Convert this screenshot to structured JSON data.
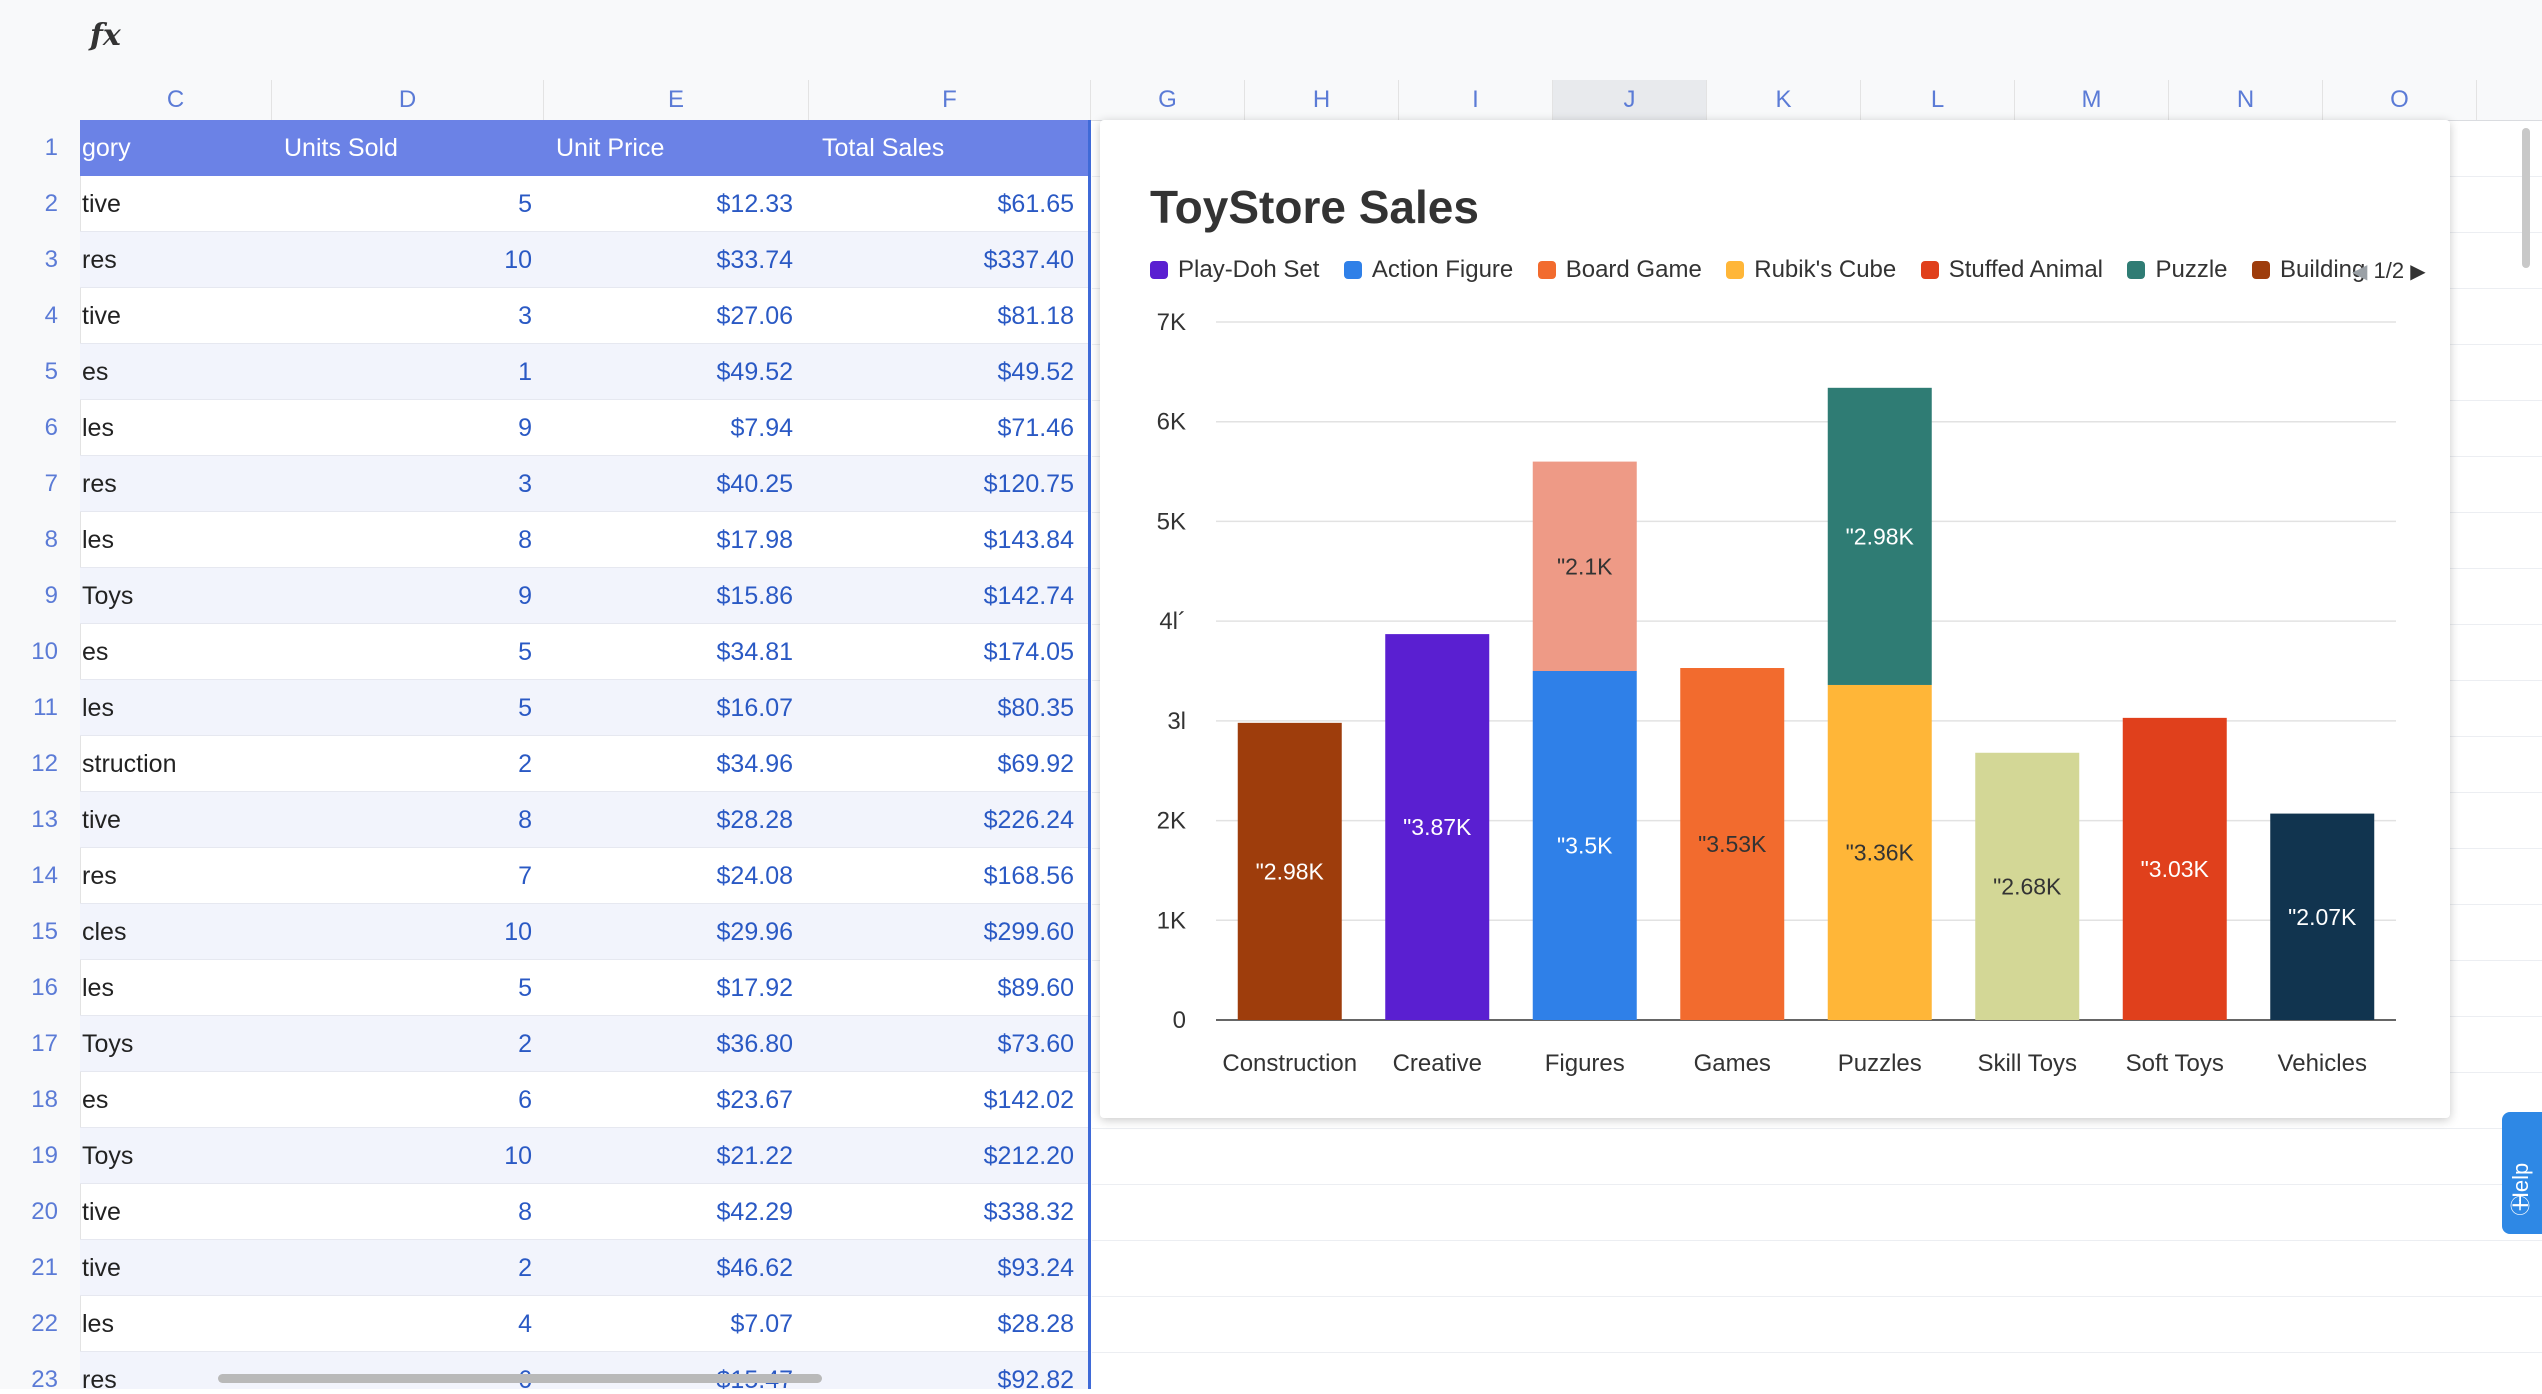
{
  "formula_bar": {
    "fx_label": "fx"
  },
  "columns": [
    {
      "letter": "C"
    },
    {
      "letter": "D"
    },
    {
      "letter": "E"
    },
    {
      "letter": "F"
    },
    {
      "letter": "G"
    },
    {
      "letter": "H"
    },
    {
      "letter": "I"
    },
    {
      "letter": "J"
    },
    {
      "letter": "K"
    },
    {
      "letter": "L"
    },
    {
      "letter": "M"
    },
    {
      "letter": "N"
    },
    {
      "letter": "O"
    }
  ],
  "selected_column": "J",
  "table": {
    "headers": [
      "gory",
      "Units Sold",
      "Unit Price",
      "Total Sales"
    ],
    "rows": [
      {
        "num": "1"
      },
      {
        "num": "2",
        "cat": "tive",
        "units": "5",
        "price": "$12.33",
        "total": "$61.65"
      },
      {
        "num": "3",
        "cat": "res",
        "units": "10",
        "price": "$33.74",
        "total": "$337.40"
      },
      {
        "num": "4",
        "cat": "tive",
        "units": "3",
        "price": "$27.06",
        "total": "$81.18"
      },
      {
        "num": "5",
        "cat": "es",
        "units": "1",
        "price": "$49.52",
        "total": "$49.52"
      },
      {
        "num": "6",
        "cat": "les",
        "units": "9",
        "price": "$7.94",
        "total": "$71.46"
      },
      {
        "num": "7",
        "cat": "res",
        "units": "3",
        "price": "$40.25",
        "total": "$120.75"
      },
      {
        "num": "8",
        "cat": "les",
        "units": "8",
        "price": "$17.98",
        "total": "$143.84"
      },
      {
        "num": "9",
        "cat": "Toys",
        "units": "9",
        "price": "$15.86",
        "total": "$142.74"
      },
      {
        "num": "10",
        "cat": "es",
        "units": "5",
        "price": "$34.81",
        "total": "$174.05"
      },
      {
        "num": "11",
        "cat": "les",
        "units": "5",
        "price": "$16.07",
        "total": "$80.35"
      },
      {
        "num": "12",
        "cat": "struction",
        "units": "2",
        "price": "$34.96",
        "total": "$69.92"
      },
      {
        "num": "13",
        "cat": "tive",
        "units": "8",
        "price": "$28.28",
        "total": "$226.24"
      },
      {
        "num": "14",
        "cat": "res",
        "units": "7",
        "price": "$24.08",
        "total": "$168.56"
      },
      {
        "num": "15",
        "cat": "cles",
        "units": "10",
        "price": "$29.96",
        "total": "$299.60"
      },
      {
        "num": "16",
        "cat": "les",
        "units": "5",
        "price": "$17.92",
        "total": "$89.60"
      },
      {
        "num": "17",
        "cat": "Toys",
        "units": "2",
        "price": "$36.80",
        "total": "$73.60"
      },
      {
        "num": "18",
        "cat": "es",
        "units": "6",
        "price": "$23.67",
        "total": "$142.02"
      },
      {
        "num": "19",
        "cat": "Toys",
        "units": "10",
        "price": "$21.22",
        "total": "$212.20"
      },
      {
        "num": "20",
        "cat": "tive",
        "units": "8",
        "price": "$42.29",
        "total": "$338.32"
      },
      {
        "num": "21",
        "cat": "tive",
        "units": "2",
        "price": "$46.62",
        "total": "$93.24"
      },
      {
        "num": "22",
        "cat": "les",
        "units": "4",
        "price": "$7.07",
        "total": "$28.28"
      },
      {
        "num": "23",
        "cat": "res",
        "units": "6",
        "price": "$15.47",
        "total": "$92.82"
      }
    ]
  },
  "legend_pager": "1/2",
  "help_label": "Help",
  "colors": {
    "header_blue": "#6b82e6",
    "Play-Doh Set": "#5a1fd1",
    "Action Figure": "#2f80e8",
    "Board Game": "#f26b2e",
    "Rubik's Cube": "#ffb638",
    "Stuffed Animal": "#e0401c",
    "Puzzle": "#2f7c74",
    "Building": "#9e3d0c",
    "Figures top": "#ee9a86",
    "Skill Toys": "#d3d796",
    "Vehicles": "#11344f"
  },
  "chart_data": {
    "type": "bar",
    "stacked": true,
    "title": "ToyStore Sales",
    "categories": [
      "Construction",
      "Creative",
      "Figures",
      "Games",
      "Puzzles",
      "Skill Toys",
      "Soft Toys",
      "Vehicles"
    ],
    "ylim": [
      0,
      7000
    ],
    "yticks": [
      "0",
      "1K",
      "2K",
      "3l",
      "4l´",
      "5K",
      "6K",
      "7K"
    ],
    "grid": true,
    "legend": {
      "position": "top-left",
      "entries": [
        "Play-Doh Set",
        "Action Figure",
        "Board Game",
        "Rubik's Cube",
        "Stuffed Animal",
        "Puzzle",
        "Building"
      ]
    },
    "segments": [
      {
        "category": "Construction",
        "value": 2980,
        "label": "\"2.98K",
        "color": "#9e3d0c"
      },
      {
        "category": "Creative",
        "value": 3870,
        "label": "\"3.87K",
        "color": "#5a1fd1"
      },
      {
        "category": "Figures",
        "value": 3500,
        "label": "\"3.5K",
        "color": "#2f80e8"
      },
      {
        "category": "Figures",
        "value": 2100,
        "label": "\"2.1K",
        "color": "#ee9a86"
      },
      {
        "category": "Games",
        "value": 3530,
        "label": "\"3.53K",
        "color": "#f26b2e"
      },
      {
        "category": "Puzzles",
        "value": 3360,
        "label": "\"3.36K",
        "color": "#ffb638"
      },
      {
        "category": "Puzzles",
        "value": 2980,
        "label": "\"2.98K",
        "color": "#2f7c74"
      },
      {
        "category": "Skill Toys",
        "value": 2680,
        "label": "\"2.68K",
        "color": "#d3d796"
      },
      {
        "category": "Soft Toys",
        "value": 3030,
        "label": "\"3.03K",
        "color": "#e0401c"
      },
      {
        "category": "Vehicles",
        "value": 2070,
        "label": "\"2.07K",
        "color": "#11344f"
      }
    ]
  }
}
